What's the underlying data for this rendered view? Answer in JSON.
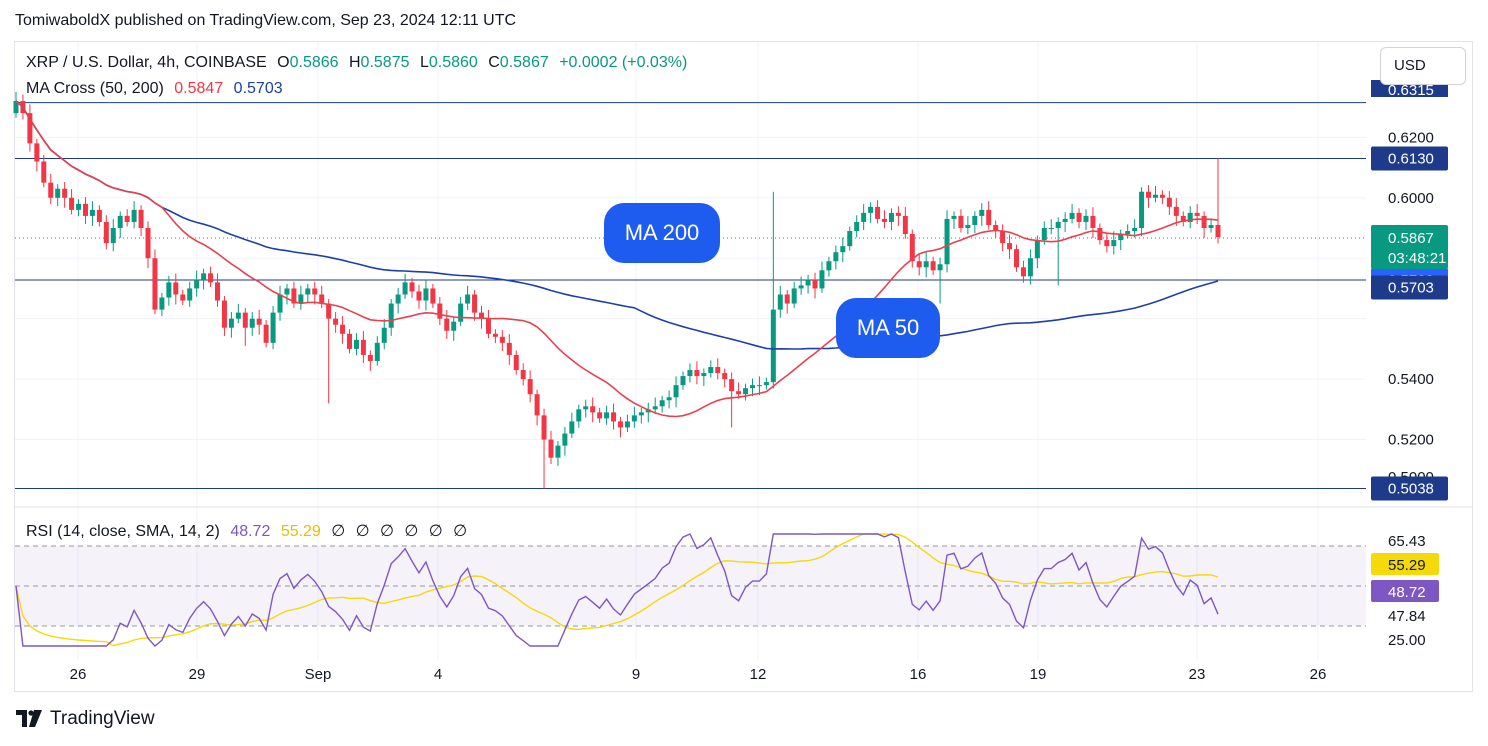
{
  "header": {
    "published": "TomiwaboldX published on TradingView.com, Sep 23, 2024 12:11 UTC"
  },
  "currency_button": "USD",
  "legend": {
    "symbol": "XRP / U.S. Dollar, 4h, COINBASE",
    "open_label": "O",
    "open": "0.5866",
    "high_label": "H",
    "high": "0.5875",
    "low_label": "L",
    "low": "0.5860",
    "close_label": "C",
    "close": "0.5867",
    "change": "+0.0002 (+0.03%)",
    "ma_name": "MA Cross (50, 200)",
    "ma50": "0.5847",
    "ma200": "0.5703",
    "rsi_name": "RSI (14, close, SMA, 14, 2)",
    "rsi": "48.72",
    "rsi_sma": "55.29",
    "rsi_empties": [
      "∅",
      "∅",
      "∅",
      "∅",
      "∅",
      "∅"
    ]
  },
  "callouts": {
    "ma200": "MA 200",
    "ma50": "MA 50"
  },
  "footer": {
    "brand": "TradingView"
  },
  "colors": {
    "up": "#089981",
    "down": "#f23645",
    "ma50": "#e8414e",
    "ma200": "#1e3fa8",
    "hline": "#1e3a8a",
    "rsi": "#7e57c2",
    "rsi_sma": "#f5d90a",
    "callout": "#1e5bef"
  },
  "chart_data": [
    {
      "type": "candlestick",
      "title": "XRP / U.S. Dollar, 4h, COINBASE",
      "y_ticks": [
        "0.6200",
        "0.6000",
        "0.5400",
        "0.5200"
      ],
      "y_range": [
        0.5,
        0.635
      ],
      "x_ticks": [
        "26",
        "29",
        "Sep",
        "4",
        "9",
        "12",
        "16",
        "19",
        "23",
        "26"
      ],
      "horizontal_levels": [
        {
          "value": 0.613,
          "label": "0.6130"
        },
        {
          "value": 0.5847,
          "label": "0.5847",
          "kind": "ma50"
        },
        {
          "value": 0.5728,
          "label": "0.5728"
        },
        {
          "value": 0.5703,
          "label": "0.5703",
          "kind": "ma200"
        },
        {
          "value": 0.5038,
          "label": "0.5038"
        }
      ],
      "last_price": {
        "value": 0.5867,
        "label": "0.5867",
        "countdown": "03:48:21"
      },
      "cut_off_labels": [
        "0.6315",
        "0.5000"
      ],
      "closes_approx": [
        0.632,
        0.628,
        0.618,
        0.612,
        0.605,
        0.6,
        0.603,
        0.6,
        0.596,
        0.598,
        0.594,
        0.596,
        0.592,
        0.585,
        0.59,
        0.594,
        0.592,
        0.596,
        0.59,
        0.58,
        0.563,
        0.567,
        0.572,
        0.568,
        0.566,
        0.57,
        0.573,
        0.575,
        0.572,
        0.566,
        0.557,
        0.56,
        0.562,
        0.557,
        0.56,
        0.558,
        0.552,
        0.562,
        0.568,
        0.57,
        0.565,
        0.568,
        0.57,
        0.568,
        0.565,
        0.56,
        0.558,
        0.555,
        0.55,
        0.553,
        0.548,
        0.546,
        0.552,
        0.557,
        0.565,
        0.568,
        0.572,
        0.569,
        0.566,
        0.57,
        0.565,
        0.56,
        0.556,
        0.559,
        0.565,
        0.568,
        0.562,
        0.56,
        0.555,
        0.554,
        0.552,
        0.548,
        0.543,
        0.54,
        0.535,
        0.528,
        0.52,
        0.514,
        0.518,
        0.522,
        0.526,
        0.53,
        0.531,
        0.529,
        0.527,
        0.529,
        0.526,
        0.524,
        0.526,
        0.528,
        0.529,
        0.53,
        0.531,
        0.533,
        0.534,
        0.538,
        0.541,
        0.543,
        0.541,
        0.542,
        0.544,
        0.542,
        0.54,
        0.536,
        0.535,
        0.537,
        0.538,
        0.538,
        0.539,
        0.563,
        0.568,
        0.565,
        0.57,
        0.571,
        0.573,
        0.57,
        0.576,
        0.579,
        0.582,
        0.584,
        0.589,
        0.592,
        0.595,
        0.597,
        0.593,
        0.592,
        0.595,
        0.594,
        0.588,
        0.579,
        0.577,
        0.579,
        0.576,
        0.578,
        0.593,
        0.594,
        0.59,
        0.591,
        0.594,
        0.596,
        0.591,
        0.589,
        0.585,
        0.583,
        0.577,
        0.574,
        0.58,
        0.586,
        0.59,
        0.59,
        0.592,
        0.593,
        0.595,
        0.592,
        0.594,
        0.59,
        0.586,
        0.584,
        0.586,
        0.588,
        0.589,
        0.59,
        0.602,
        0.6,
        0.601,
        0.6,
        0.597,
        0.594,
        0.592,
        0.595,
        0.594,
        0.59,
        0.591,
        0.587
      ]
    },
    {
      "type": "line",
      "title": "RSI (14, close, SMA, 14, 2)",
      "y_ticks": [
        "65.43",
        "47.84",
        "25.00"
      ],
      "band": [
        30,
        70
      ],
      "last_values": {
        "rsi": "48.72",
        "rsi_sma": "55.29"
      }
    }
  ]
}
